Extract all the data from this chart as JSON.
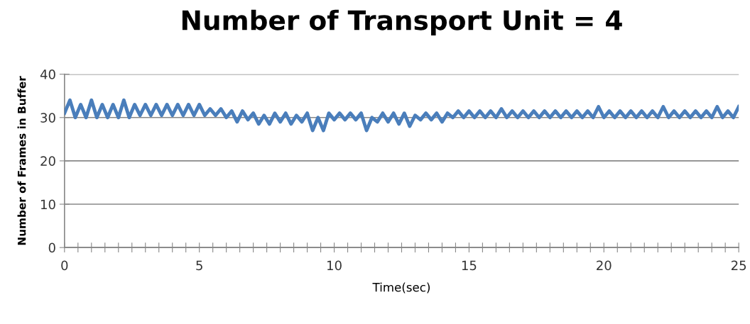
{
  "chart_data": {
    "type": "line",
    "title": "Number of Transport Unit = 4",
    "xlabel": "Time(sec)",
    "ylabel": "Number of Frames in Buffer",
    "xlim": [
      0,
      25
    ],
    "ylim": [
      0,
      40
    ],
    "yticks": [
      0,
      10,
      20,
      30,
      40
    ],
    "xticks": [
      0,
      {
        "value": 0.5,
        "label": null
      },
      {
        "value": 1,
        "label": null
      },
      {
        "value": 1.5,
        "label": null
      },
      {
        "value": 2,
        "label": null
      },
      {
        "value": 2.5,
        "label": null
      },
      {
        "value": 3,
        "label": null
      },
      {
        "value": 3.5,
        "label": null
      },
      {
        "value": 4,
        "label": null
      },
      {
        "value": 4.5,
        "label": null
      },
      5,
      {
        "value": 5.5,
        "label": null
      },
      {
        "value": 6,
        "label": null
      },
      {
        "value": 6.5,
        "label": null
      },
      {
        "value": 7,
        "label": null
      },
      {
        "value": 7.5,
        "label": null
      },
      {
        "value": 8,
        "label": null
      },
      {
        "value": 8.5,
        "label": null
      },
      {
        "value": 9,
        "label": null
      },
      {
        "value": 9.5,
        "label": null
      },
      10,
      {
        "value": 10.5,
        "label": null
      },
      {
        "value": 11,
        "label": null
      },
      {
        "value": 11.5,
        "label": null
      },
      {
        "value": 12,
        "label": null
      },
      {
        "value": 12.5,
        "label": null
      },
      {
        "value": 13,
        "label": null
      },
      {
        "value": 13.5,
        "label": null
      },
      {
        "value": 14,
        "label": null
      },
      {
        "value": 14.5,
        "label": null
      },
      15,
      {
        "value": 15.5,
        "label": null
      },
      {
        "value": 16,
        "label": null
      },
      {
        "value": 16.5,
        "label": null
      },
      {
        "value": 17,
        "label": null
      },
      {
        "value": 17.5,
        "label": null
      },
      {
        "value": 18,
        "label": null
      },
      {
        "value": 18.5,
        "label": null
      },
      {
        "value": 19,
        "label": null
      },
      {
        "value": 19.5,
        "label": null
      },
      20,
      {
        "value": 20.5,
        "label": null
      },
      {
        "value": 21,
        "label": null
      },
      {
        "value": 21.5,
        "label": null
      },
      {
        "value": 22,
        "label": null
      },
      {
        "value": 22.5,
        "label": null
      },
      {
        "value": 23,
        "label": null
      },
      {
        "value": 23.5,
        "label": null
      },
      {
        "value": 24,
        "label": null
      },
      {
        "value": 24.5,
        "label": null
      },
      25
    ],
    "grid": "y",
    "marker": "none",
    "line_style": "solid",
    "series": [
      {
        "color": "#4a7ebb",
        "x": [
          0,
          0.2,
          0.4,
          0.6,
          0.8,
          1.0,
          1.2,
          1.4,
          1.6,
          1.8,
          2.0,
          2.2,
          2.4,
          2.6,
          2.8,
          3.0,
          3.2,
          3.4,
          3.6,
          3.8,
          4.0,
          4.2,
          4.4,
          4.6,
          4.8,
          5.0,
          5.2,
          5.4,
          5.6,
          5.8,
          6.0,
          6.2,
          6.4,
          6.6,
          6.8,
          7.0,
          7.2,
          7.4,
          7.6,
          7.8,
          8.0,
          8.2,
          8.4,
          8.6,
          8.8,
          9.0,
          9.2,
          9.4,
          9.6,
          9.8,
          10.0,
          10.2,
          10.4,
          10.6,
          10.8,
          11.0,
          11.2,
          11.4,
          11.6,
          11.8,
          12.0,
          12.2,
          12.4,
          12.6,
          12.8,
          13.0,
          13.2,
          13.4,
          13.6,
          13.8,
          14.0,
          14.2,
          14.4,
          14.6,
          14.8,
          15.0,
          15.2,
          15.4,
          15.6,
          15.8,
          16.0,
          16.2,
          16.4,
          16.6,
          16.8,
          17.0,
          17.2,
          17.4,
          17.6,
          17.8,
          18.0,
          18.2,
          18.4,
          18.6,
          18.8,
          19.0,
          19.2,
          19.4,
          19.6,
          19.8,
          20.0,
          20.2,
          20.4,
          20.6,
          20.8,
          21.0,
          21.2,
          21.4,
          21.6,
          21.8,
          22.0,
          22.2,
          22.4,
          22.6,
          22.8,
          23.0,
          23.2,
          23.4,
          23.6,
          23.8,
          24.0,
          24.2,
          24.4,
          24.6,
          24.8,
          25.0
        ],
        "values": [
          31,
          34,
          30,
          33,
          30,
          34,
          30,
          33,
          30,
          33,
          30,
          34,
          30,
          33,
          30.5,
          33,
          30.5,
          33,
          30.5,
          33,
          30.5,
          33,
          30.5,
          33,
          30.5,
          33,
          30.5,
          32,
          30.5,
          32,
          30,
          31.5,
          29,
          31.5,
          29.5,
          31,
          28.5,
          30.5,
          28.5,
          31,
          29,
          31,
          28.5,
          30.5,
          29,
          31,
          27,
          30,
          27,
          31,
          29.5,
          31,
          29.5,
          31,
          29.5,
          31,
          27,
          30,
          29,
          31,
          29,
          31,
          28.5,
          31,
          28,
          30.5,
          29.5,
          31,
          29.5,
          31,
          29,
          31,
          30,
          31.5,
          30,
          31.5,
          30,
          31.5,
          30,
          31.5,
          30,
          32,
          30,
          31.5,
          30,
          31.5,
          30,
          31.5,
          30,
          31.5,
          30,
          31.5,
          30,
          31.5,
          30,
          31.5,
          30,
          31.5,
          30,
          32.5,
          30,
          31.5,
          30,
          31.5,
          30,
          31.5,
          30,
          31.5,
          30,
          31.5,
          30,
          32.5,
          30,
          31.5,
          30,
          31.5,
          30,
          31.5,
          30,
          31.5,
          30,
          32.5,
          30,
          31.5,
          30,
          32.5
        ]
      }
    ]
  }
}
